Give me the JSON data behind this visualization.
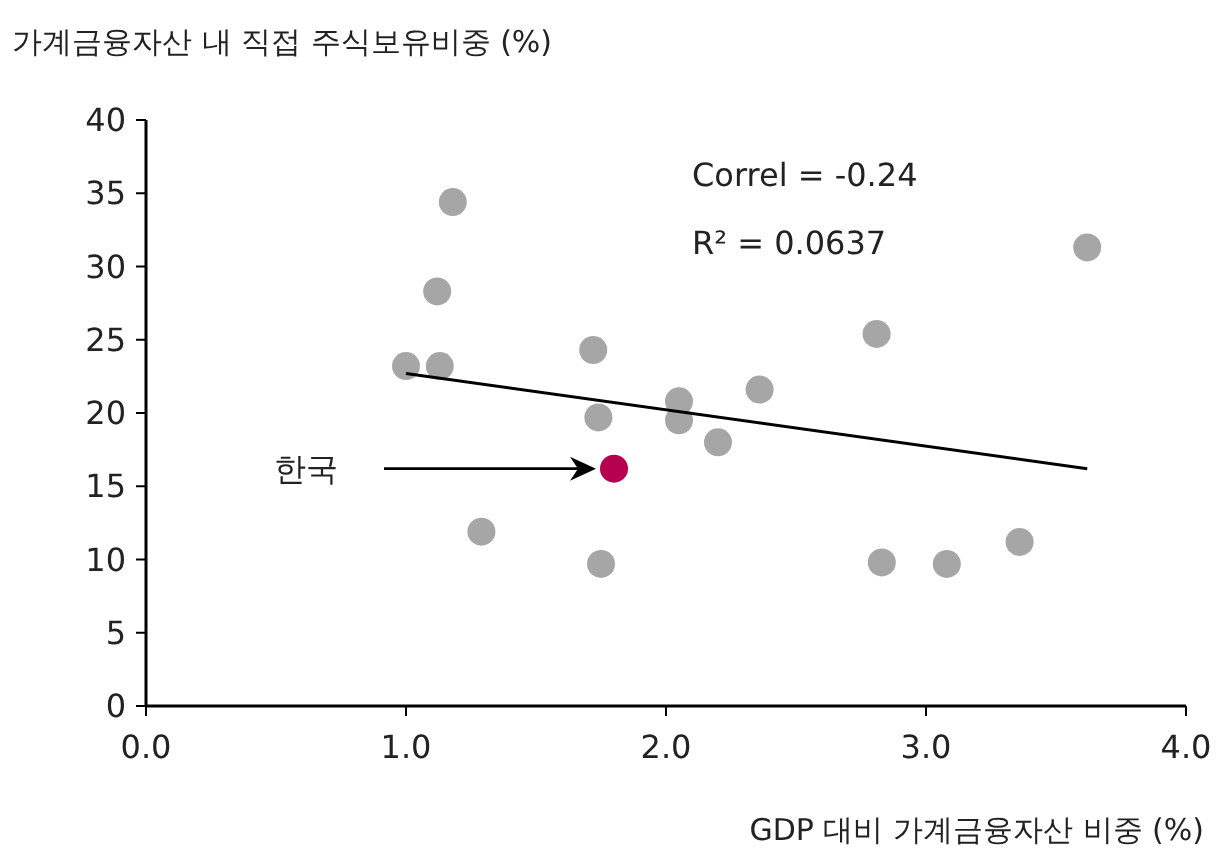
{
  "chart_data": {
    "type": "scatter",
    "ylabel": "가계금융자산 내 직접 주식보유비중 (%)",
    "xlabel": "GDP 대비 가계금융자산 비중 (%)",
    "xlim": [
      0,
      4
    ],
    "xticks": [
      {
        "value": 0,
        "label": "0.0"
      },
      {
        "value": 1,
        "label": "1.0"
      },
      {
        "value": 2,
        "label": "2.0"
      },
      {
        "value": 3,
        "label": "3.0"
      },
      {
        "value": 4,
        "label": "4.0"
      }
    ],
    "ylim": [
      0,
      40
    ],
    "yticks": [
      0,
      5,
      10,
      15,
      20,
      25,
      30,
      35,
      40
    ],
    "grid": false,
    "marker": "circle",
    "series": [
      {
        "color": "#a6a6a6",
        "x": [
          1.0,
          1.13,
          1.12,
          1.18,
          1.29,
          1.72,
          1.74,
          1.75,
          2.05,
          2.05,
          2.2,
          2.36,
          2.81,
          2.83,
          3.08,
          3.36,
          3.62
        ],
        "values": [
          23.2,
          23.2,
          28.3,
          34.4,
          11.9,
          24.3,
          19.7,
          9.7,
          20.8,
          19.5,
          18.0,
          21.6,
          25.4,
          9.8,
          9.7,
          11.2,
          31.3
        ]
      },
      {
        "color": "#b5004f",
        "x": [
          1.8
        ],
        "values": [
          16.2
        ]
      },
      {
        "type": "line",
        "color": "#000000",
        "x": [
          1.0,
          3.62
        ],
        "values": [
          22.7,
          16.2
        ],
        "marker": "none"
      }
    ],
    "annotations": [
      "한국",
      "Correl = -0.24",
      "R² = 0.0637"
    ]
  }
}
